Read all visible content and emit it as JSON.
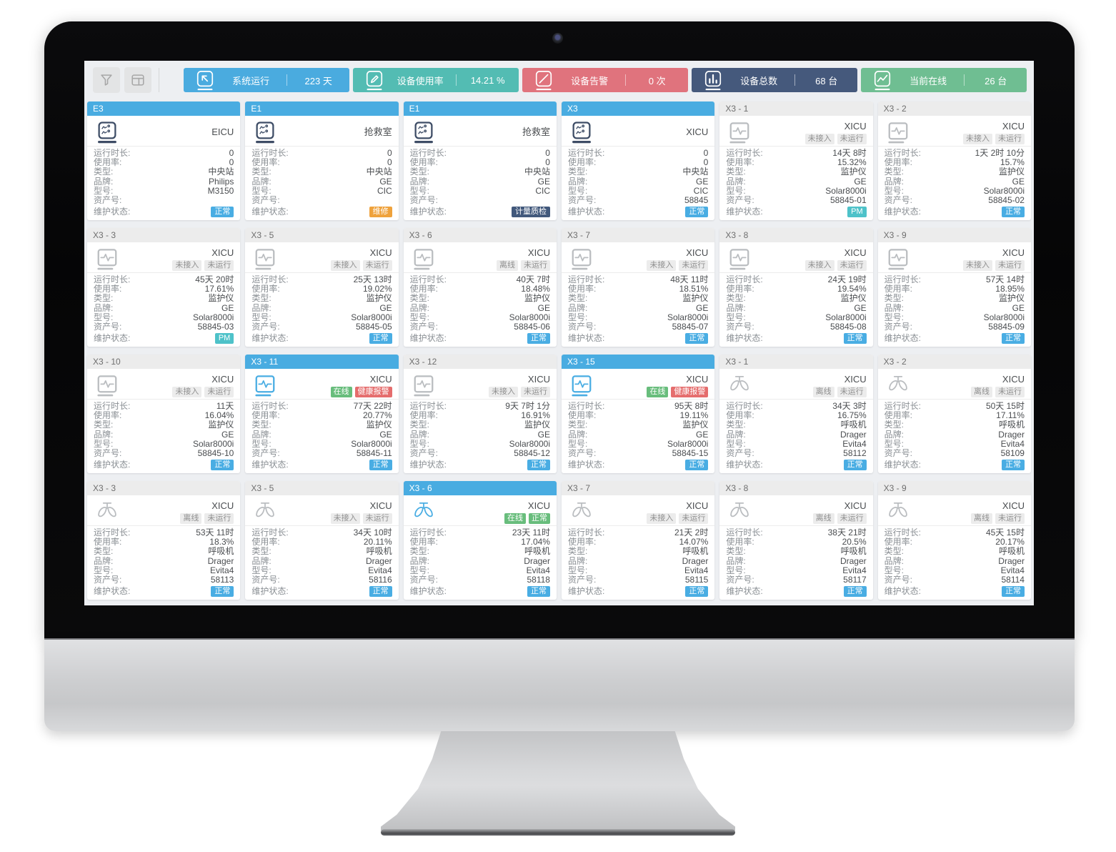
{
  "toolbar": {
    "buttons": [
      {
        "name": "filter-button",
        "icon": "filter-icon"
      },
      {
        "name": "layout-button",
        "icon": "layout-icon"
      }
    ],
    "stats": [
      {
        "label": "系统运行",
        "value": "223 天",
        "color": "#4aabdf",
        "icon": "cursor-square-icon"
      },
      {
        "label": "设备使用率",
        "value": "14.21 %",
        "color": "#53bcb3",
        "icon": "pencil-square-icon"
      },
      {
        "label": "设备告警",
        "value": "0 次",
        "color": "#e0737d",
        "icon": "slash-square-icon"
      },
      {
        "label": "设备总数",
        "value": "68 台",
        "color": "#45597c",
        "icon": "bar-chart-icon"
      },
      {
        "label": "当前在线",
        "value": "26 台",
        "color": "#6fbe92",
        "icon": "trend-square-icon"
      }
    ]
  },
  "field_labels": {
    "runtime": "运行时长:",
    "usage": "使用率:",
    "type": "类型:",
    "brand": "品牌:",
    "model": "型号:",
    "asset": "资产号:",
    "maintenance": "维护状态:"
  },
  "cards": [
    {
      "id": "E3",
      "variant": "blue",
      "icon": "central-station-icon",
      "location": "EICU",
      "status_badges": [],
      "runtime": "0",
      "usage": "0",
      "type": "中央站",
      "brand": "Philips",
      "model": "M3150",
      "asset": "",
      "maintenance": {
        "label": "正常",
        "style": "blue"
      }
    },
    {
      "id": "E1",
      "variant": "blue",
      "icon": "central-station-icon",
      "location": "抢救室",
      "status_badges": [],
      "runtime": "0",
      "usage": "0",
      "type": "中央站",
      "brand": "GE",
      "model": "CIC",
      "asset": "",
      "maintenance": {
        "label": "维修",
        "style": "orange"
      }
    },
    {
      "id": "E1",
      "variant": "blue",
      "icon": "central-station-icon",
      "location": "抢救室",
      "status_badges": [],
      "runtime": "0",
      "usage": "0",
      "type": "中央站",
      "brand": "GE",
      "model": "CIC",
      "asset": "",
      "maintenance": {
        "label": "计量质检",
        "style": "navy"
      }
    },
    {
      "id": "X3",
      "variant": "blue",
      "icon": "central-station-icon",
      "location": "XICU",
      "status_badges": [],
      "runtime": "0",
      "usage": "0",
      "type": "中央站",
      "brand": "GE",
      "model": "CIC",
      "asset": "58845",
      "maintenance": {
        "label": "正常",
        "style": "blue"
      }
    },
    {
      "id": "X3 - 1",
      "variant": "gray",
      "icon": "monitor-icon",
      "location": "XICU",
      "status_badges": [
        {
          "label": "未接入",
          "style": "gray"
        },
        {
          "label": "未运行",
          "style": "gray"
        }
      ],
      "runtime": "14天 8时",
      "usage": "15.32%",
      "type": "监护仪",
      "brand": "GE",
      "model": "Solar8000i",
      "asset": "58845-01",
      "maintenance": {
        "label": "PM",
        "style": "teal"
      }
    },
    {
      "id": "X3 - 2",
      "variant": "gray",
      "icon": "monitor-icon",
      "location": "XICU",
      "status_badges": [
        {
          "label": "未接入",
          "style": "gray"
        },
        {
          "label": "未运行",
          "style": "gray"
        }
      ],
      "runtime": "1天 2时 10分",
      "usage": "15.7%",
      "type": "监护仪",
      "brand": "GE",
      "model": "Solar8000i",
      "asset": "58845-02",
      "maintenance": {
        "label": "正常",
        "style": "blue"
      }
    },
    {
      "id": "X3 - 3",
      "variant": "gray",
      "icon": "monitor-icon",
      "location": "XICU",
      "status_badges": [
        {
          "label": "未接入",
          "style": "gray"
        },
        {
          "label": "未运行",
          "style": "gray"
        }
      ],
      "runtime": "45天 20时",
      "usage": "17.61%",
      "type": "监护仪",
      "brand": "GE",
      "model": "Solar8000i",
      "asset": "58845-03",
      "maintenance": {
        "label": "PM",
        "style": "teal"
      }
    },
    {
      "id": "X3 - 5",
      "variant": "gray",
      "icon": "monitor-icon",
      "location": "XICU",
      "status_badges": [
        {
          "label": "未接入",
          "style": "gray"
        },
        {
          "label": "未运行",
          "style": "gray"
        }
      ],
      "runtime": "25天 13时",
      "usage": "19.02%",
      "type": "监护仪",
      "brand": "GE",
      "model": "Solar8000i",
      "asset": "58845-05",
      "maintenance": {
        "label": "正常",
        "style": "blue"
      }
    },
    {
      "id": "X3 - 6",
      "variant": "gray",
      "icon": "monitor-icon",
      "location": "XICU",
      "status_badges": [
        {
          "label": "离线",
          "style": "gray"
        },
        {
          "label": "未运行",
          "style": "gray"
        }
      ],
      "runtime": "40天 7时",
      "usage": "18.48%",
      "type": "监护仪",
      "brand": "GE",
      "model": "Solar8000i",
      "asset": "58845-06",
      "maintenance": {
        "label": "正常",
        "style": "blue"
      }
    },
    {
      "id": "X3 - 7",
      "variant": "gray",
      "icon": "monitor-icon",
      "location": "XICU",
      "status_badges": [
        {
          "label": "未接入",
          "style": "gray"
        },
        {
          "label": "未运行",
          "style": "gray"
        }
      ],
      "runtime": "48天 11时",
      "usage": "18.51%",
      "type": "监护仪",
      "brand": "GE",
      "model": "Solar8000i",
      "asset": "58845-07",
      "maintenance": {
        "label": "正常",
        "style": "blue"
      }
    },
    {
      "id": "X3 - 8",
      "variant": "gray",
      "icon": "monitor-icon",
      "location": "XICU",
      "status_badges": [
        {
          "label": "未接入",
          "style": "gray"
        },
        {
          "label": "未运行",
          "style": "gray"
        }
      ],
      "runtime": "24天 19时",
      "usage": "19.54%",
      "type": "监护仪",
      "brand": "GE",
      "model": "Solar8000i",
      "asset": "58845-08",
      "maintenance": {
        "label": "正常",
        "style": "blue"
      }
    },
    {
      "id": "X3 - 9",
      "variant": "gray",
      "icon": "monitor-icon",
      "location": "XICU",
      "status_badges": [
        {
          "label": "未接入",
          "style": "gray"
        },
        {
          "label": "未运行",
          "style": "gray"
        }
      ],
      "runtime": "57天 14时",
      "usage": "18.95%",
      "type": "监护仪",
      "brand": "GE",
      "model": "Solar8000i",
      "asset": "58845-09",
      "maintenance": {
        "label": "正常",
        "style": "blue"
      }
    },
    {
      "id": "X3 - 10",
      "variant": "gray",
      "icon": "monitor-icon",
      "location": "XICU",
      "status_badges": [
        {
          "label": "未接入",
          "style": "gray"
        },
        {
          "label": "未运行",
          "style": "gray"
        }
      ],
      "runtime": "11天",
      "usage": "16.04%",
      "type": "监护仪",
      "brand": "GE",
      "model": "Solar8000i",
      "asset": "58845-10",
      "maintenance": {
        "label": "正常",
        "style": "blue"
      }
    },
    {
      "id": "X3 - 11",
      "variant": "blue",
      "icon": "monitor-icon",
      "location": "XICU",
      "status_badges": [
        {
          "label": "在线",
          "style": "green"
        },
        {
          "label": "健康报警",
          "style": "red"
        }
      ],
      "runtime": "77天 22时",
      "usage": "20.77%",
      "type": "监护仪",
      "brand": "GE",
      "model": "Solar8000i",
      "asset": "58845-11",
      "maintenance": {
        "label": "正常",
        "style": "blue"
      }
    },
    {
      "id": "X3 - 12",
      "variant": "gray",
      "icon": "monitor-icon",
      "location": "XICU",
      "status_badges": [
        {
          "label": "未接入",
          "style": "gray"
        },
        {
          "label": "未运行",
          "style": "gray"
        }
      ],
      "runtime": "9天 7时 1分",
      "usage": "16.91%",
      "type": "监护仪",
      "brand": "GE",
      "model": "Solar8000i",
      "asset": "58845-12",
      "maintenance": {
        "label": "正常",
        "style": "blue"
      }
    },
    {
      "id": "X3 - 15",
      "variant": "blue",
      "icon": "monitor-icon",
      "location": "XICU",
      "status_badges": [
        {
          "label": "在线",
          "style": "green"
        },
        {
          "label": "健康报警",
          "style": "red"
        }
      ],
      "runtime": "95天 8时",
      "usage": "19.11%",
      "type": "监护仪",
      "brand": "GE",
      "model": "Solar8000i",
      "asset": "58845-15",
      "maintenance": {
        "label": "正常",
        "style": "blue"
      }
    },
    {
      "id": "X3 - 1",
      "variant": "gray",
      "icon": "lungs-icon",
      "location": "XICU",
      "status_badges": [
        {
          "label": "离线",
          "style": "gray"
        },
        {
          "label": "未运行",
          "style": "gray"
        }
      ],
      "runtime": "34天 3时",
      "usage": "16.75%",
      "type": "呼吸机",
      "brand": "Drager",
      "model": "Evita4",
      "asset": "58112",
      "maintenance": {
        "label": "正常",
        "style": "blue"
      }
    },
    {
      "id": "X3 - 2",
      "variant": "gray",
      "icon": "lungs-icon",
      "location": "XICU",
      "status_badges": [
        {
          "label": "离线",
          "style": "gray"
        },
        {
          "label": "未运行",
          "style": "gray"
        }
      ],
      "runtime": "50天 15时",
      "usage": "17.11%",
      "type": "呼吸机",
      "brand": "Drager",
      "model": "Evita4",
      "asset": "58109",
      "maintenance": {
        "label": "正常",
        "style": "blue"
      }
    },
    {
      "id": "X3 - 3",
      "variant": "gray",
      "icon": "lungs-icon",
      "location": "XICU",
      "status_badges": [
        {
          "label": "离线",
          "style": "gray"
        },
        {
          "label": "未运行",
          "style": "gray"
        }
      ],
      "runtime": "53天 11时",
      "usage": "18.3%",
      "type": "呼吸机",
      "brand": "Drager",
      "model": "Evita4",
      "asset": "58113",
      "maintenance": {
        "label": "正常",
        "style": "blue"
      }
    },
    {
      "id": "X3 - 5",
      "variant": "gray",
      "icon": "lungs-icon",
      "location": "XICU",
      "status_badges": [
        {
          "label": "未接入",
          "style": "gray"
        },
        {
          "label": "未运行",
          "style": "gray"
        }
      ],
      "runtime": "34天 10时",
      "usage": "20.11%",
      "type": "呼吸机",
      "brand": "Drager",
      "model": "Evita4",
      "asset": "58116",
      "maintenance": {
        "label": "正常",
        "style": "blue"
      }
    },
    {
      "id": "X3 - 6",
      "variant": "blue",
      "icon": "lungs-icon",
      "location": "XICU",
      "status_badges": [
        {
          "label": "在线",
          "style": "green"
        },
        {
          "label": "正常",
          "style": "green"
        }
      ],
      "runtime": "23天 11时",
      "usage": "17.04%",
      "type": "呼吸机",
      "brand": "Drager",
      "model": "Evita4",
      "asset": "58118",
      "maintenance": {
        "label": "正常",
        "style": "blue"
      }
    },
    {
      "id": "X3 - 7",
      "variant": "gray",
      "icon": "lungs-icon",
      "location": "XICU",
      "status_badges": [
        {
          "label": "未接入",
          "style": "gray"
        },
        {
          "label": "未运行",
          "style": "gray"
        }
      ],
      "runtime": "21天 2时",
      "usage": "14.07%",
      "type": "呼吸机",
      "brand": "Drager",
      "model": "Evita4",
      "asset": "58115",
      "maintenance": {
        "label": "正常",
        "style": "blue"
      }
    },
    {
      "id": "X3 - 8",
      "variant": "gray",
      "icon": "lungs-icon",
      "location": "XICU",
      "status_badges": [
        {
          "label": "离线",
          "style": "gray"
        },
        {
          "label": "未运行",
          "style": "gray"
        }
      ],
      "runtime": "38天 21时",
      "usage": "20.5%",
      "type": "呼吸机",
      "brand": "Drager",
      "model": "Evita4",
      "asset": "58117",
      "maintenance": {
        "label": "正常",
        "style": "blue"
      }
    },
    {
      "id": "X3 - 9",
      "variant": "gray",
      "icon": "lungs-icon",
      "location": "XICU",
      "status_badges": [
        {
          "label": "离线",
          "style": "gray"
        },
        {
          "label": "未运行",
          "style": "gray"
        }
      ],
      "runtime": "45天 15时",
      "usage": "20.17%",
      "type": "呼吸机",
      "brand": "Drager",
      "model": "Evita4",
      "asset": "58114",
      "maintenance": {
        "label": "正常",
        "style": "blue"
      }
    }
  ]
}
